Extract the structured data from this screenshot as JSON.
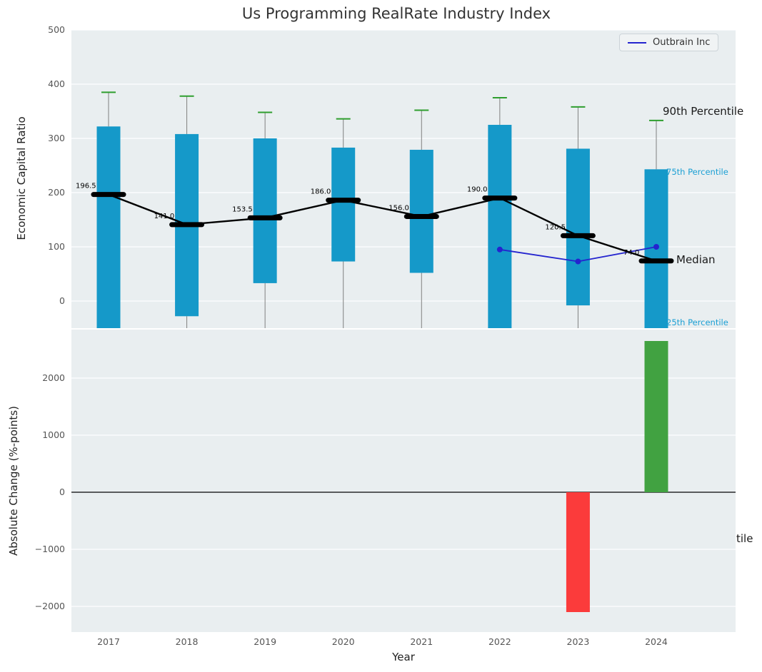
{
  "title": "Us Programming RealRate Industry Index",
  "legend": {
    "label": "Outbrain Inc"
  },
  "axes": {
    "top_ylabel": "Economic Capital Ratio",
    "bottom_ylabel": "Absolute Change (%-points)",
    "xlabel": "Year"
  },
  "annotations": {
    "p90": "90th Percentile",
    "p75": "75th Percentile",
    "median": "Median",
    "p25": "25th Percentile",
    "partial_right": "tile"
  },
  "colors": {
    "panel_bg": "#e9eef0",
    "grid": "#ffffff",
    "bar_blue": "#1599c9",
    "cap_green": "#2e9e2e",
    "bar_green": "#41a241",
    "bar_red": "#fb3b3b",
    "outbrain_blue": "#2424cf",
    "percentile_text": "#1a9fd4",
    "tick_text": "#555555",
    "median_black": "#000000"
  },
  "chart_data": [
    {
      "type": "box",
      "panel": "top",
      "title": "Us Programming RealRate Industry Index",
      "ylabel": "Economic Capital Ratio",
      "ylim": [
        -50,
        500
      ],
      "yticks": [
        0,
        100,
        200,
        300,
        400,
        500
      ],
      "grid": true,
      "categories": [
        "2017",
        "2018",
        "2019",
        "2020",
        "2021",
        "2022",
        "2023",
        "2024"
      ],
      "boxes": [
        {
          "q1": -50,
          "q3": 322,
          "whisker_high": 385,
          "q1_clipped": true
        },
        {
          "q1": -28,
          "q3": 308,
          "whisker_high": 378,
          "q1_clipped": false
        },
        {
          "q1": 33,
          "q3": 300,
          "whisker_high": 348,
          "q1_clipped": false
        },
        {
          "q1": 73,
          "q3": 283,
          "whisker_high": 336,
          "q1_clipped": false
        },
        {
          "q1": 52,
          "q3": 279,
          "whisker_high": 352,
          "q1_clipped": false
        },
        {
          "q1": -50,
          "q3": 325,
          "whisker_high": 375,
          "q1_clipped": true
        },
        {
          "q1": -8,
          "q3": 281,
          "whisker_high": 358,
          "q1_clipped": false
        },
        {
          "q1": -50,
          "q3": 243,
          "whisker_high": 333,
          "q1_clipped": true
        }
      ],
      "medians": [
        196.5,
        141.0,
        153.5,
        186.0,
        156.0,
        190.0,
        120.5,
        74.0
      ],
      "series": [
        {
          "name": "Outbrain Inc",
          "years": [
            "2022",
            "2023",
            "2024"
          ],
          "values": [
            95,
            73,
            100
          ]
        }
      ],
      "legend_position": "upper right"
    },
    {
      "type": "bar",
      "panel": "bottom",
      "ylabel": "Absolute Change (%-points)",
      "xlabel": "Year",
      "ylim": [
        -2450,
        2850
      ],
      "yticks": [
        -2000,
        -1000,
        0,
        1000,
        2000
      ],
      "grid": true,
      "zero_line": 0,
      "categories": [
        "2017",
        "2018",
        "2019",
        "2020",
        "2021",
        "2022",
        "2023",
        "2024"
      ],
      "values": [
        null,
        null,
        null,
        null,
        null,
        null,
        -2100,
        2650
      ]
    }
  ]
}
